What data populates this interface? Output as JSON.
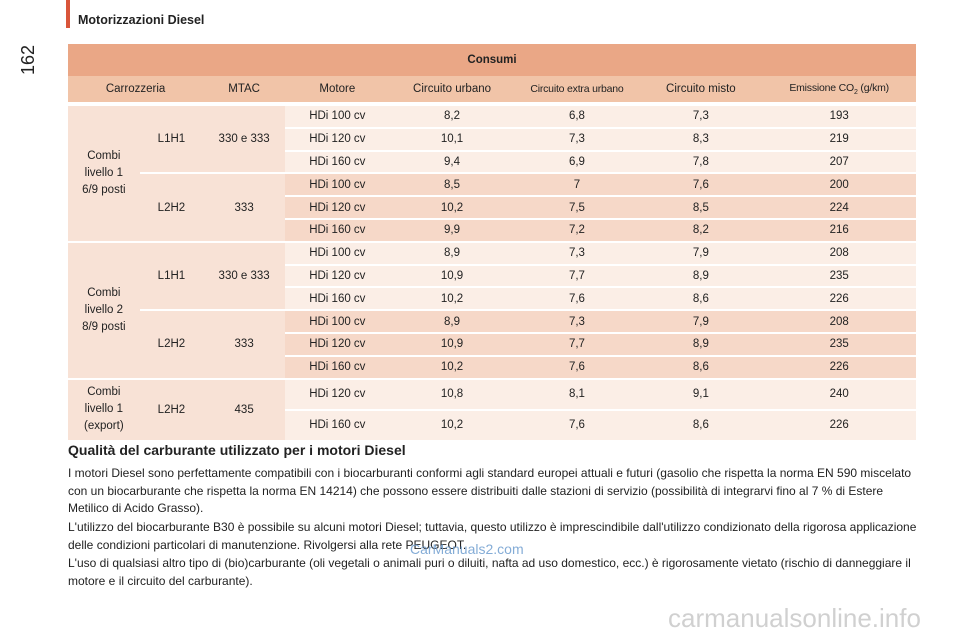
{
  "page": {
    "page_number": "162",
    "section_title": "Motorizzazioni Diesel"
  },
  "table": {
    "title": "Consumi",
    "headers": [
      "Carrozzeria",
      "MTAC",
      "Motore",
      "Circuito urbano",
      "Circuito extra urbano",
      "Circuito misto",
      "Emissione CO",
      "2",
      " (g/km)"
    ],
    "groups": [
      {
        "carrozzeria": [
          "Combi",
          "livello 1",
          "6/9 posti"
        ],
        "subgroups": [
          {
            "version": "L1H1",
            "mtac": "330 e 333",
            "rows": [
              [
                "HDi 100 cv",
                "8,2",
                "6,8",
                "7,3",
                "193"
              ],
              [
                "HDi 120 cv",
                "10,1",
                "7,3",
                "8,3",
                "219"
              ],
              [
                "HDi 160 cv",
                "9,4",
                "6,9",
                "7,8",
                "207"
              ]
            ]
          },
          {
            "version": "L2H2",
            "mtac": "333",
            "rows": [
              [
                "HDi 100 cv",
                "8,5",
                "7",
                "7,6",
                "200"
              ],
              [
                "HDi 120 cv",
                "10,2",
                "7,5",
                "8,5",
                "224"
              ],
              [
                "HDi 160 cv",
                "9,9",
                "7,2",
                "8,2",
                "216"
              ]
            ]
          }
        ]
      },
      {
        "carrozzeria": [
          "Combi",
          "livello 2",
          "8/9 posti"
        ],
        "subgroups": [
          {
            "version": "L1H1",
            "mtac": "330 e 333",
            "rows": [
              [
                "HDi 100 cv",
                "8,9",
                "7,3",
                "7,9",
                "208"
              ],
              [
                "HDi 120 cv",
                "10,9",
                "7,7",
                "8,9",
                "235"
              ],
              [
                "HDi 160 cv",
                "10,2",
                "7,6",
                "8,6",
                "226"
              ]
            ]
          },
          {
            "version": "L2H2",
            "mtac": "333",
            "rows": [
              [
                "HDi 100 cv",
                "8,9",
                "7,3",
                "7,9",
                "208"
              ],
              [
                "HDi 120 cv",
                "10,9",
                "7,7",
                "8,9",
                "235"
              ],
              [
                "HDi 160 cv",
                "10,2",
                "7,6",
                "8,6",
                "226"
              ]
            ]
          }
        ]
      },
      {
        "carrozzeria": [
          "Combi",
          "livello 1",
          "(export)"
        ],
        "subgroups": [
          {
            "version": "L2H2",
            "mtac": "435",
            "rows": [
              [
                "HDi 120 cv",
                "10,8",
                "8,1",
                "9,1",
                "240"
              ],
              [
                "HDi 160 cv",
                "10,2",
                "7,6",
                "8,6",
                "226"
              ]
            ]
          }
        ]
      }
    ]
  },
  "fuel_section": {
    "heading": "Qualità del carburante utilizzato per i motori Diesel",
    "paragraphs": [
      "I motori Diesel sono perfettamente compatibili con i biocarburanti conformi agli standard europei attuali e futuri (gasolio che rispetta la norma EN 590 miscelato con un biocarburante che rispetta la norma EN 14214) che possono essere distribuiti dalle stazioni di servizio (possibilità di integrarvi fino al 7 % di Estere Metilico di Acido Grasso).",
      "L'utilizzo del biocarburante B30 è possibile su alcuni motori Diesel; tuttavia, questo utilizzo è imprescindibile dall'utilizzo condizionato della rigorosa applicazione delle condizioni particolari di manutenzione. Rivolgersi alla rete PEUGEOT.",
      "L'uso di qualsiasi altro tipo di (bio)carburante (oli vegetali o animali puri o diluiti, nafta ad uso domestico, ecc.) è rigorosamente vietato (rischio di danneggiare il motore e il circuito del carburante)."
    ]
  },
  "watermarks": {
    "site_small": "CarManuals2.com",
    "site_large": "carmanualsonline.info"
  },
  "colors": {
    "accent_bar": "#d9553a",
    "table_title_band": "#eaa786",
    "header_row": "#f1c4a8",
    "row_light": "#fbeee6",
    "row_dark": "#f6d8c8"
  }
}
